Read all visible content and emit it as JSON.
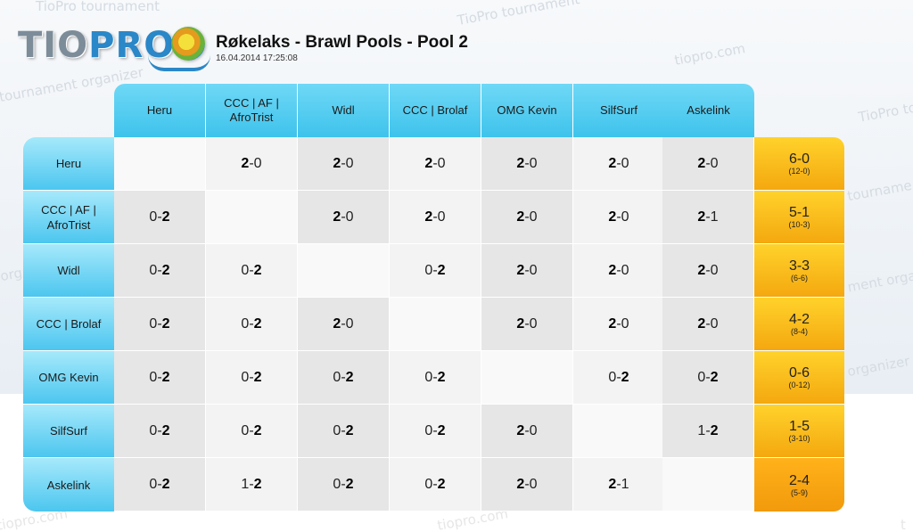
{
  "watermarks": {
    "w1": "TioPro tournament",
    "w2": "TioPro tournament",
    "w3": "tiopro.com",
    "w4": "tournament organizer",
    "w5": "TioPro tourname",
    "w6": "tourname",
    "w7": "organizer",
    "w8": "ment organiz",
    "w9": "organizer",
    "w10": "tiopro.com",
    "w11": "tiopro.com",
    "w12": "t"
  },
  "logo": {
    "tio": "TIO",
    "pro": "PRO"
  },
  "header": {
    "title": "Røkelaks - Brawl Pools - Pool 2",
    "date": "16.04.2014 17:25:08"
  },
  "players": [
    "Heru",
    "CCC | AF | AfroTrist",
    "Widl",
    "CCC | Brolaf",
    "OMG Kevin",
    "SilfSurf",
    "Askelink"
  ],
  "matrix": [
    [
      "",
      "2-0",
      "2-0",
      "2-0",
      "2-0",
      "2-0",
      "2-0"
    ],
    [
      "0-2",
      "",
      "2-0",
      "2-0",
      "2-0",
      "2-0",
      "2-1"
    ],
    [
      "0-2",
      "0-2",
      "",
      "0-2",
      "2-0",
      "2-0",
      "2-0"
    ],
    [
      "0-2",
      "0-2",
      "2-0",
      "",
      "2-0",
      "2-0",
      "2-0"
    ],
    [
      "0-2",
      "0-2",
      "0-2",
      "0-2",
      "",
      "0-2",
      "0-2"
    ],
    [
      "0-2",
      "0-2",
      "0-2",
      "0-2",
      "2-0",
      "",
      "1-2"
    ],
    [
      "0-2",
      "1-2",
      "0-2",
      "0-2",
      "2-0",
      "2-1",
      ""
    ]
  ],
  "totals": [
    {
      "score": "6-0",
      "games": "(12-0)"
    },
    {
      "score": "5-1",
      "games": "(10-3)"
    },
    {
      "score": "3-3",
      "games": "(6-6)"
    },
    {
      "score": "4-2",
      "games": "(8-4)"
    },
    {
      "score": "0-6",
      "games": "(0-12)"
    },
    {
      "score": "1-5",
      "games": "(3-10)"
    },
    {
      "score": "2-4",
      "games": "(5-9)"
    }
  ],
  "colors": {
    "header_cyan": "#3ec3ec",
    "row_cyan": "#4cc6ef",
    "total_orange": "#f4a80f",
    "cell_light": "#f3f3f3",
    "cell_dark": "#e6e6e6"
  }
}
